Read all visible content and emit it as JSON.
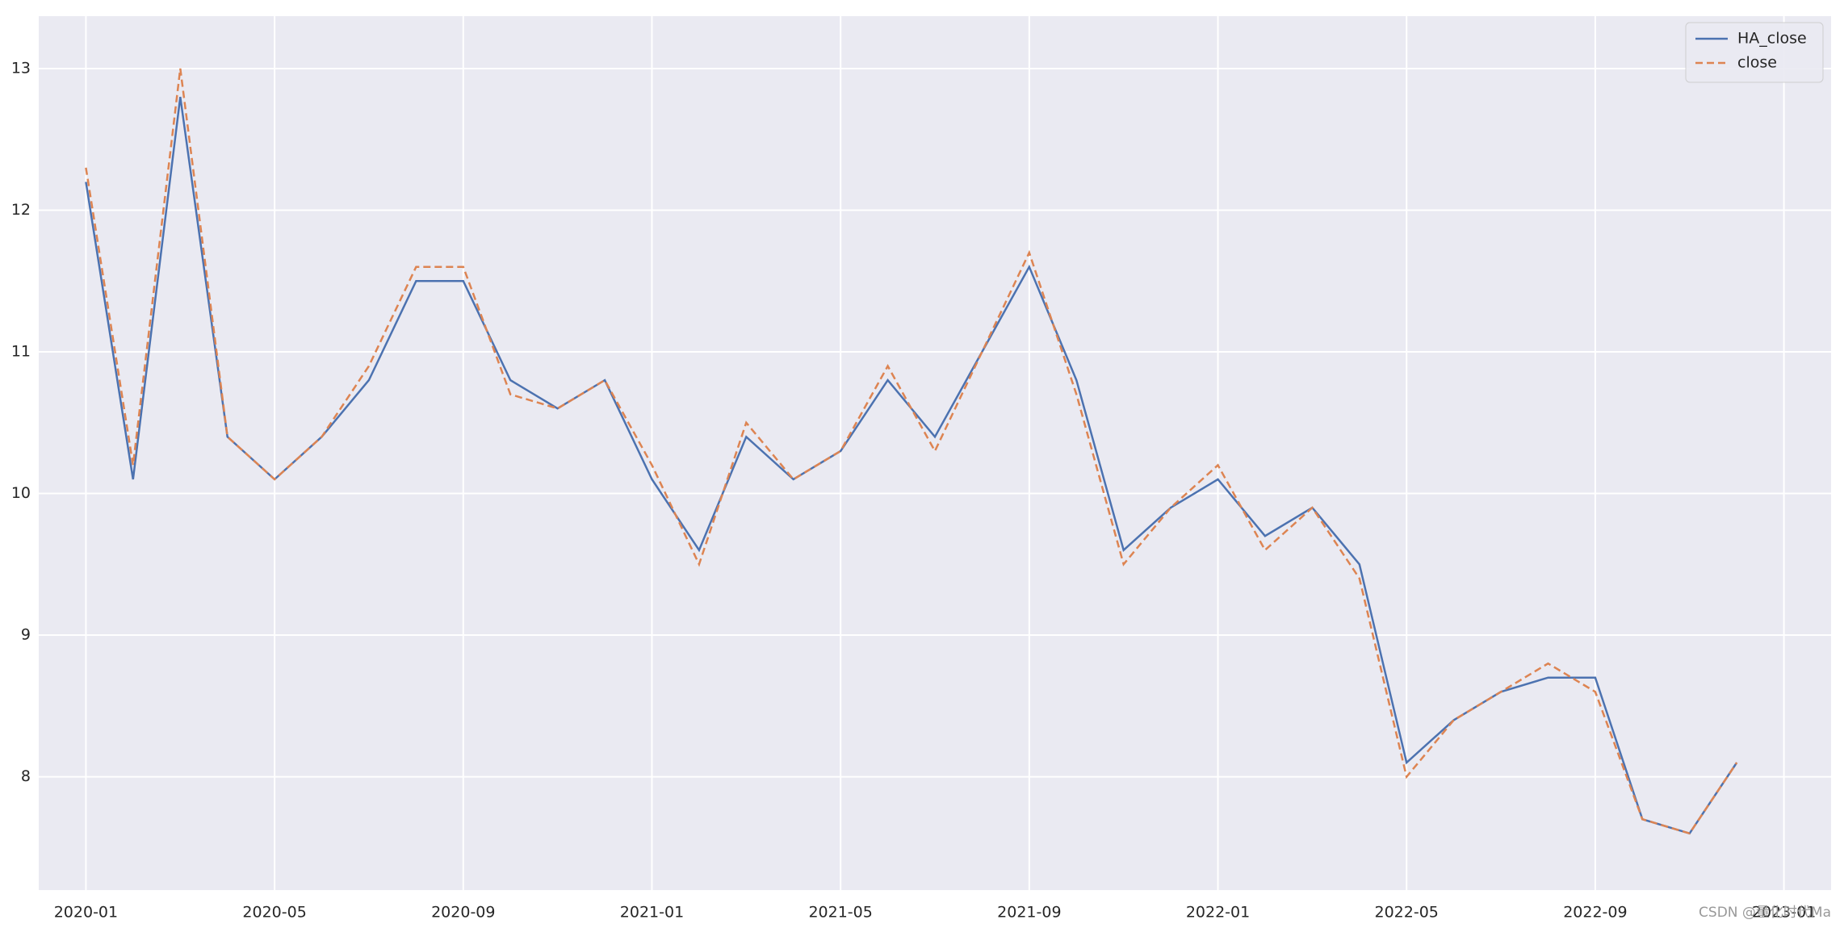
{
  "chart_data": {
    "type": "line",
    "x": [
      "2020-01",
      "2020-02",
      "2020-03",
      "2020-04",
      "2020-05",
      "2020-06",
      "2020-07",
      "2020-08",
      "2020-09",
      "2020-10",
      "2020-11",
      "2020-12",
      "2021-01",
      "2021-02",
      "2021-03",
      "2021-04",
      "2021-05",
      "2021-06",
      "2021-07",
      "2021-08",
      "2021-09",
      "2021-10",
      "2021-11",
      "2021-12",
      "2022-01",
      "2022-02",
      "2022-03",
      "2022-04",
      "2022-05",
      "2022-06",
      "2022-07",
      "2022-08",
      "2022-09",
      "2022-10",
      "2022-11",
      "2022-12"
    ],
    "series": [
      {
        "name": "HA_close",
        "color": "#4c72b0",
        "dash": false,
        "values": [
          12.2,
          10.1,
          12.8,
          10.4,
          10.1,
          10.4,
          10.8,
          11.5,
          11.5,
          10.8,
          10.6,
          10.8,
          10.1,
          9.6,
          10.4,
          10.1,
          10.3,
          10.8,
          10.4,
          11.0,
          11.6,
          10.8,
          9.6,
          9.9,
          10.1,
          9.7,
          9.9,
          9.5,
          8.1,
          8.4,
          8.6,
          8.7,
          8.7,
          7.7,
          7.6,
          8.1
        ]
      },
      {
        "name": "close",
        "color": "#dd8452",
        "dash": true,
        "values": [
          12.3,
          10.2,
          13.0,
          10.4,
          10.1,
          10.4,
          10.9,
          11.6,
          11.6,
          10.7,
          10.6,
          10.8,
          10.2,
          9.5,
          10.5,
          10.1,
          10.3,
          10.9,
          10.3,
          11.0,
          11.7,
          10.7,
          9.5,
          9.9,
          10.2,
          9.6,
          9.9,
          9.4,
          8.0,
          8.4,
          8.6,
          8.8,
          8.6,
          7.7,
          7.6,
          8.1
        ]
      }
    ],
    "xlim": [
      "2019-12",
      "2023-02"
    ],
    "xticks": [
      "2020-01",
      "2020-05",
      "2020-09",
      "2021-01",
      "2021-05",
      "2021-09",
      "2022-01",
      "2022-05",
      "2022-09",
      "2023-01"
    ],
    "ylim": [
      7.2,
      13.37
    ],
    "yticks": [
      8,
      9,
      10,
      11,
      12,
      13
    ],
    "grid": true,
    "legend": "upper right",
    "annotation": "CSDN @量化时代Ma"
  }
}
